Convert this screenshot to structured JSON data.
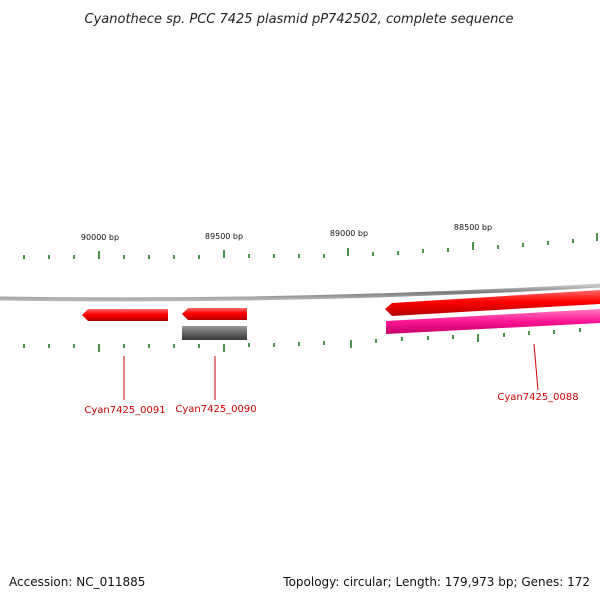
{
  "title": "Cyanothece sp. PCC 7425 plasmid pP742502, complete sequence",
  "scale_labels": [
    "90000 bp",
    "89500 bp",
    "89000 bp",
    "88500 bp"
  ],
  "genes": [
    {
      "label": "Cyan7425_0091",
      "color": "#ff0000"
    },
    {
      "label": "Cyan7425_0090",
      "color": "#ff0000"
    },
    {
      "label": "Cyan7425_0088",
      "color": "#ff0000"
    }
  ],
  "feature_colors": {
    "gene": "#ff0000",
    "cds_gray": "#666666",
    "cds_pink": "#ff1a8c",
    "ticks": "#1a7a1a",
    "backbone": "#8a8a8a",
    "label": "#cc0000"
  },
  "footer": {
    "accession": "Accession: NC_011885",
    "summary": "Topology: circular; Length: 179,973 bp; Genes: 172"
  }
}
